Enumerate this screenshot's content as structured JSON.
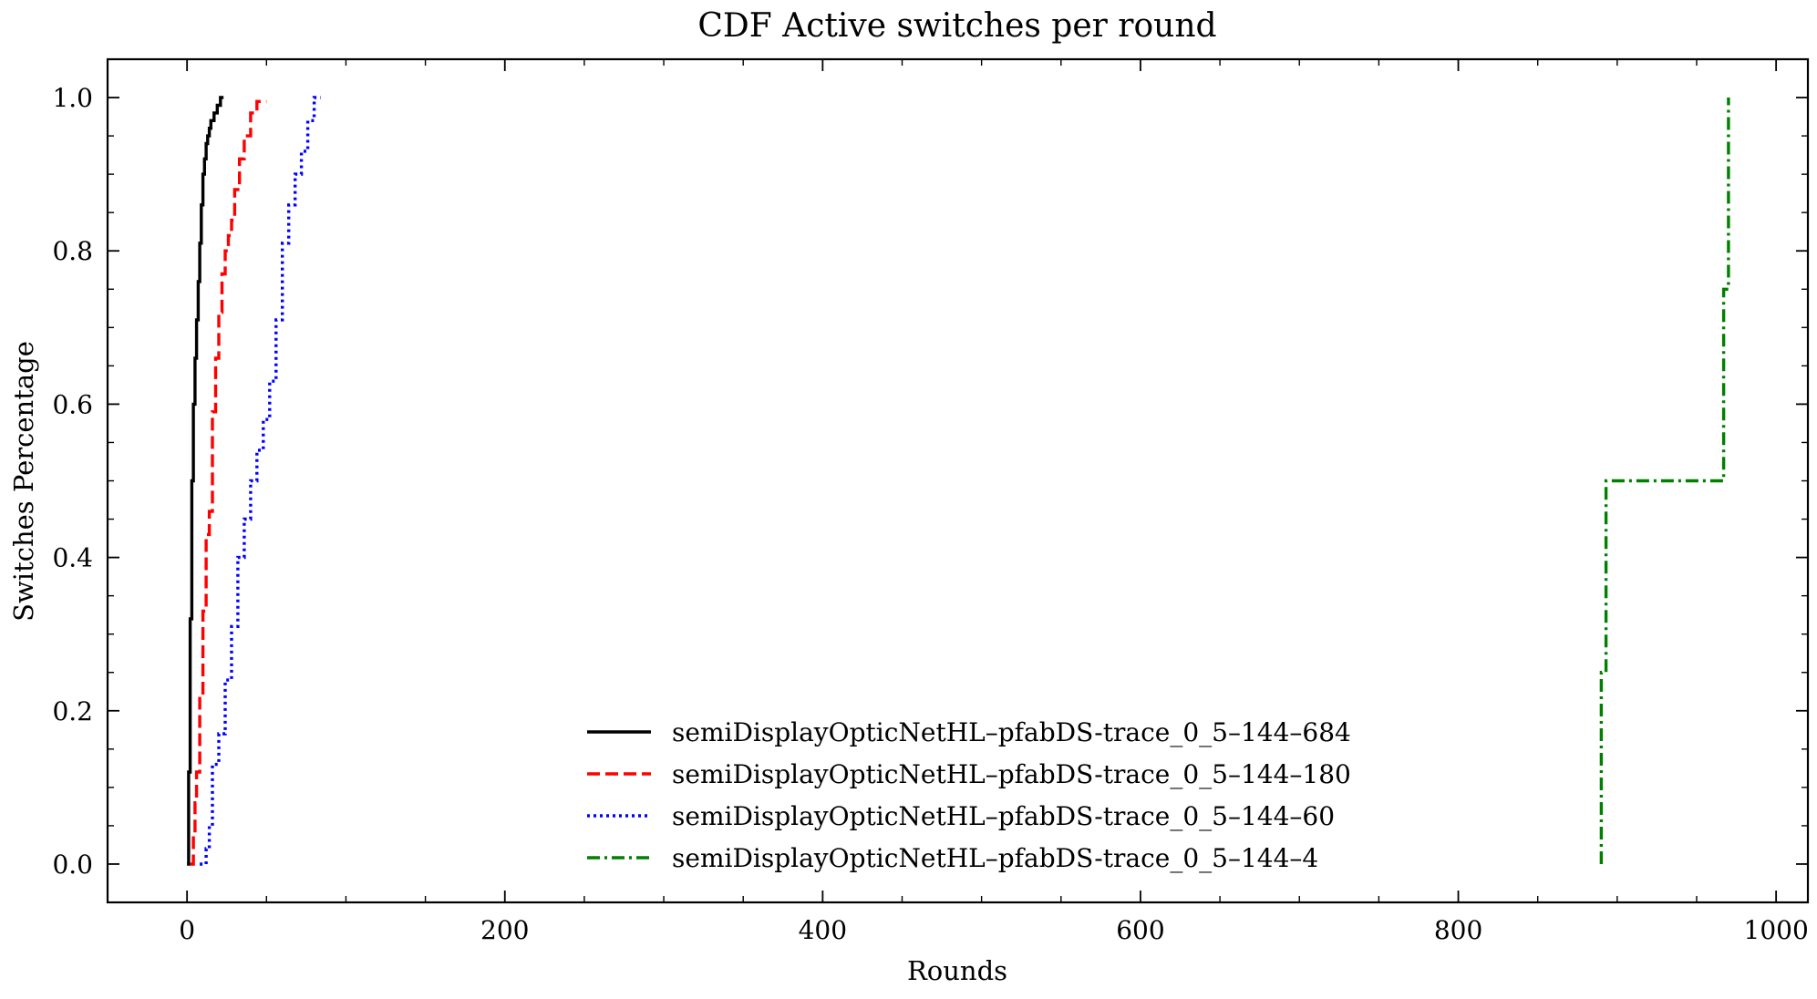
{
  "chart_data": {
    "type": "line",
    "title": "CDF Active switches per round",
    "xlabel": "Rounds",
    "ylabel": "Switches Percentage",
    "xlim": [
      -50,
      1020
    ],
    "ylim": [
      -0.05,
      1.05
    ],
    "x_ticks": [
      0,
      200,
      400,
      600,
      800,
      1000
    ],
    "y_ticks": [
      0.0,
      0.2,
      0.4,
      0.6,
      0.8,
      1.0
    ],
    "x_tick_labels": [
      "0",
      "200",
      "400",
      "600",
      "800",
      "1000"
    ],
    "y_tick_labels": [
      "0.0",
      "0.2",
      "0.4",
      "0.6",
      "0.8",
      "1.0"
    ],
    "grid": false,
    "legend_position": "lower-center",
    "series": [
      {
        "name": "semiDisplayOpticNetHL–pfabDS-trace_0_5–144–684",
        "color": "#000000",
        "style": "solid",
        "x": [
          0,
          1,
          1,
          2,
          2,
          3,
          3,
          4,
          4,
          5,
          5,
          6,
          6,
          7,
          7,
          8,
          8,
          9,
          9,
          10,
          10,
          11,
          11,
          12,
          12,
          13,
          13,
          14,
          14,
          15,
          15,
          17,
          17,
          19,
          19,
          21,
          21,
          23,
          23
        ],
        "y": [
          0.0,
          0.0,
          0.12,
          0.12,
          0.32,
          0.32,
          0.5,
          0.5,
          0.6,
          0.6,
          0.66,
          0.66,
          0.71,
          0.71,
          0.76,
          0.76,
          0.81,
          0.81,
          0.86,
          0.86,
          0.9,
          0.9,
          0.92,
          0.92,
          0.94,
          0.94,
          0.95,
          0.95,
          0.96,
          0.96,
          0.97,
          0.97,
          0.98,
          0.98,
          0.99,
          0.99,
          1.0,
          1.0,
          1.0
        ]
      },
      {
        "name": "semiDisplayOpticNetHL–pfabDS-trace_0_5–144–180",
        "color": "#ff0000",
        "style": "dashed",
        "x": [
          2,
          4,
          4,
          5,
          5,
          6,
          6,
          8,
          8,
          10,
          10,
          12,
          12,
          14,
          14,
          16,
          16,
          18,
          18,
          20,
          20,
          22,
          22,
          24,
          24,
          26,
          26,
          28,
          28,
          30,
          30,
          33,
          33,
          36,
          36,
          40,
          40,
          44,
          44,
          50
        ],
        "y": [
          0.0,
          0.0,
          0.04,
          0.04,
          0.08,
          0.08,
          0.12,
          0.12,
          0.22,
          0.22,
          0.33,
          0.33,
          0.43,
          0.43,
          0.46,
          0.46,
          0.59,
          0.59,
          0.66,
          0.66,
          0.72,
          0.72,
          0.77,
          0.77,
          0.8,
          0.8,
          0.82,
          0.82,
          0.84,
          0.84,
          0.88,
          0.88,
          0.92,
          0.92,
          0.95,
          0.95,
          0.98,
          0.98,
          0.995,
          0.995
        ]
      },
      {
        "name": "semiDisplayOpticNetHL–pfabDS-trace_0_5–144–60",
        "color": "#0000ff",
        "style": "dotted",
        "x": [
          8,
          12,
          12,
          14,
          14,
          16,
          16,
          20,
          20,
          24,
          24,
          28,
          28,
          32,
          32,
          36,
          36,
          40,
          40,
          44,
          44,
          48,
          48,
          52,
          52,
          56,
          56,
          60,
          60,
          64,
          64,
          68,
          68,
          72,
          72,
          76,
          76,
          80,
          80,
          84
        ],
        "y": [
          0.0,
          0.0,
          0.02,
          0.02,
          0.05,
          0.05,
          0.13,
          0.13,
          0.17,
          0.17,
          0.24,
          0.24,
          0.31,
          0.31,
          0.4,
          0.4,
          0.45,
          0.45,
          0.5,
          0.5,
          0.54,
          0.54,
          0.58,
          0.58,
          0.63,
          0.63,
          0.71,
          0.71,
          0.81,
          0.81,
          0.86,
          0.86,
          0.9,
          0.9,
          0.93,
          0.93,
          0.97,
          0.97,
          1.0,
          1.0
        ]
      },
      {
        "name": "semiDisplayOpticNetHL–pfabDS-trace_0_5–144–4",
        "color": "#008000",
        "style": "dashdot",
        "x": [
          890,
          890,
          893,
          893,
          967,
          967,
          970,
          970
        ],
        "y": [
          0.0,
          0.25,
          0.25,
          0.5,
          0.5,
          0.75,
          0.75,
          1.0
        ]
      }
    ]
  }
}
